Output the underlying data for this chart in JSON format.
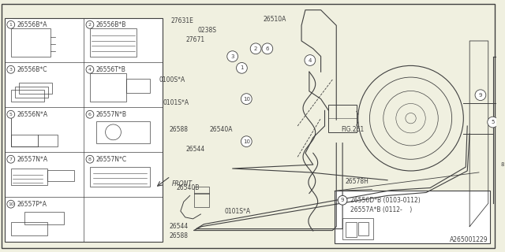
{
  "bg_color": "#f0f0e0",
  "line_color": "#404040",
  "fig_width": 6.4,
  "fig_height": 3.2,
  "dpi": 100,
  "parts_grid": {
    "items": [
      {
        "num": "1",
        "label": "26556B*A",
        "row": 0,
        "col": 0
      },
      {
        "num": "2",
        "label": "26556B*B",
        "row": 0,
        "col": 1
      },
      {
        "num": "3",
        "label": "26556B*C",
        "row": 1,
        "col": 0
      },
      {
        "num": "4",
        "label": "26556T*B",
        "row": 1,
        "col": 1
      },
      {
        "num": "5",
        "label": "26556N*A",
        "row": 2,
        "col": 0
      },
      {
        "num": "6",
        "label": "26557N*B",
        "row": 2,
        "col": 1
      },
      {
        "num": "7",
        "label": "26557N*A",
        "row": 3,
        "col": 0
      },
      {
        "num": "8",
        "label": "26557N*C",
        "row": 3,
        "col": 1
      },
      {
        "num": "10",
        "label": "26557P*A",
        "row": 4,
        "col": 0
      }
    ]
  },
  "callout_box": {
    "line1": "26556D*B (0103-0112)",
    "line2": "26557A*B (0112-    )"
  },
  "bottom_text": "A265001229"
}
